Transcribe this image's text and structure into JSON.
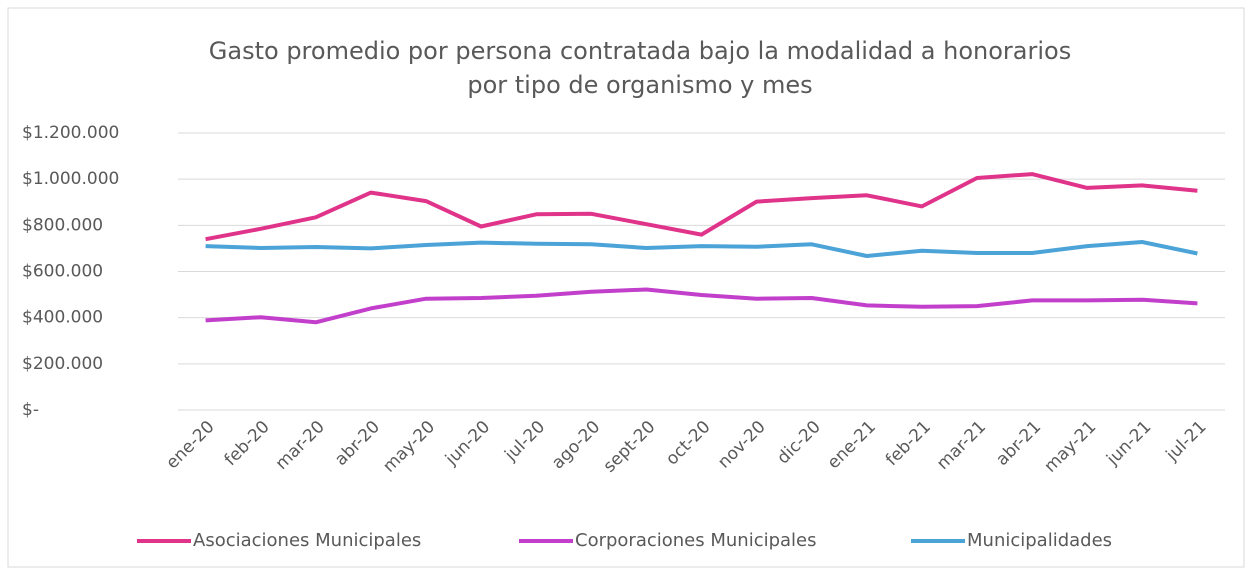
{
  "chart_data": {
    "type": "line",
    "title": [
      "Gasto promedio por persona contratada bajo la modalidad a honorarios",
      "por tipo de organismo y mes"
    ],
    "categories": [
      "ene-20",
      "feb-20",
      "mar-20",
      "abr-20",
      "may-20",
      "jun-20",
      "jul-20",
      "ago-20",
      "sept-20",
      "oct-20",
      "nov-20",
      "dic-20",
      "ene-21",
      "feb-21",
      "mar-21",
      "abr-21",
      "may-21",
      "jun-21",
      "jul-21"
    ],
    "series": [
      {
        "name": "Asociaciones Municipales",
        "color": "#e0338a",
        "values": [
          740000,
          785000,
          835000,
          942000,
          905000,
          795000,
          848000,
          850000,
          805000,
          760000,
          903000,
          918000,
          930000,
          882000,
          1005000,
          1022000,
          962000,
          973000,
          950000
        ]
      },
      {
        "name": "Corporaciones Municipales",
        "color": "#c23fcb",
        "values": [
          388000,
          402000,
          380000,
          440000,
          482000,
          485000,
          495000,
          512000,
          522000,
          498000,
          482000,
          485000,
          453000,
          447000,
          450000,
          475000,
          475000,
          478000,
          462000
        ]
      },
      {
        "name": "Municipalidades",
        "color": "#4ba3d8",
        "values": [
          710000,
          702000,
          706000,
          700000,
          715000,
          725000,
          720000,
          718000,
          702000,
          710000,
          707000,
          718000,
          667000,
          690000,
          680000,
          680000,
          710000,
          728000,
          678000
        ]
      }
    ],
    "ylim": [
      0,
      1200000
    ],
    "yticks": [
      {
        "value": 0,
        "label": "$-"
      },
      {
        "value": 200000,
        "label": "$200.000"
      },
      {
        "value": 400000,
        "label": "$400.000"
      },
      {
        "value": 600000,
        "label": "$600.000"
      },
      {
        "value": 800000,
        "label": "$800.000"
      },
      {
        "value": 1000000,
        "label": "$1.000.000"
      },
      {
        "value": 1200000,
        "label": "$1.200.000"
      }
    ],
    "grid": true,
    "legend": "bottom"
  }
}
